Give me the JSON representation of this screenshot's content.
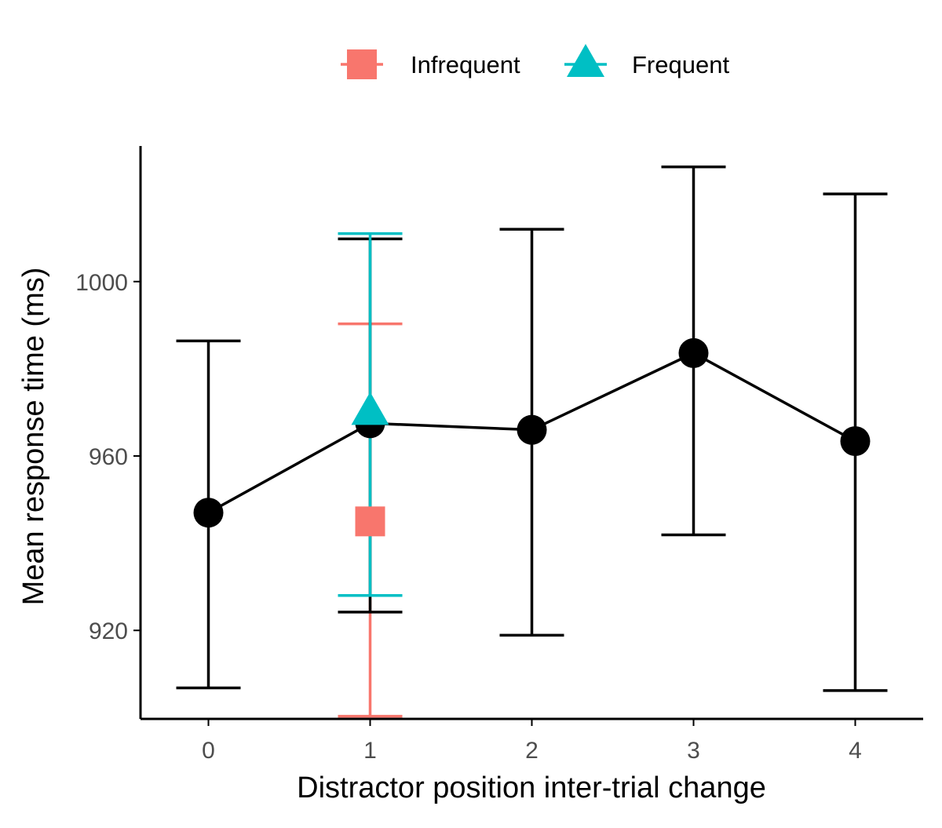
{
  "chart_data": {
    "type": "scatter",
    "xlabel": "Distractor position inter-trial change",
    "ylabel": "Mean response time (ms)",
    "x_ticks": [
      "0",
      "1",
      "2",
      "3",
      "4"
    ],
    "y_ticks": [
      "920",
      "960",
      "1000"
    ],
    "xlim": [
      -0.42,
      4.42
    ],
    "ylim": [
      899.7,
      1031.1
    ],
    "grid": false,
    "legend_position": "top-center",
    "colors": {
      "overall": "#000000",
      "Infrequent": "#F8766D",
      "Frequent": "#00BFC4",
      "axis": "#000000",
      "tick_label": "#4D4D4D"
    },
    "series": [
      {
        "key": "overall",
        "marker": "circle",
        "connected": true,
        "x": [
          0,
          1,
          2,
          3,
          4
        ],
        "y": [
          947.0,
          967.5,
          966.0,
          983.6,
          963.4
        ],
        "err_low": [
          906.8,
          924.2,
          918.9,
          941.9,
          906.2
        ],
        "err_high": [
          986.4,
          1009.8,
          1012.0,
          1026.3,
          1020.1
        ]
      },
      {
        "key": "infrequent",
        "name": "Infrequent",
        "marker": "square",
        "connected": false,
        "x": [
          1
        ],
        "y": [
          945.0
        ],
        "err_low": [
          900.3
        ],
        "err_high": [
          990.3
        ]
      },
      {
        "key": "frequent",
        "name": "Frequent",
        "marker": "triangle",
        "connected": false,
        "x": [
          1
        ],
        "y": [
          970.0
        ],
        "err_low": [
          928.0
        ],
        "err_high": [
          1011.0
        ]
      }
    ],
    "legend": [
      {
        "label": "Infrequent",
        "marker": "square"
      },
      {
        "label": "Frequent",
        "marker": "triangle"
      }
    ]
  }
}
